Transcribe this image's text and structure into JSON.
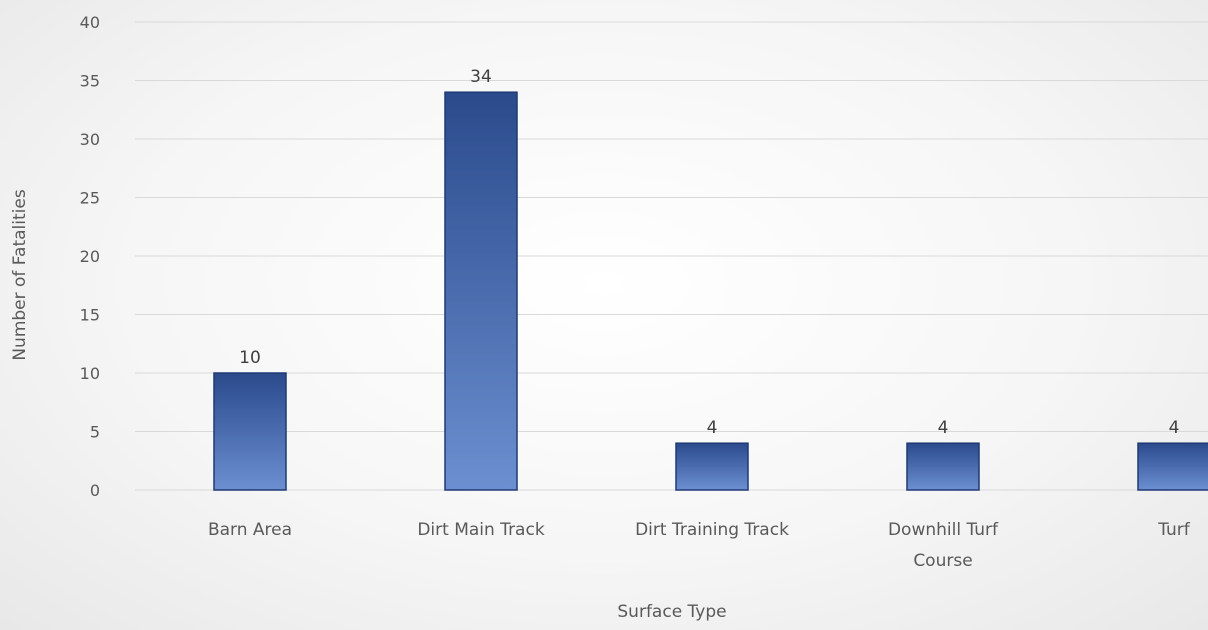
{
  "chart_data": {
    "type": "bar",
    "categories": [
      "Barn Area",
      "Dirt Main Track",
      "Dirt Training Track",
      "Downhill Turf Course",
      "Turf"
    ],
    "category_lines": [
      [
        "Barn Area"
      ],
      [
        "Dirt Main Track"
      ],
      [
        "Dirt Training Track"
      ],
      [
        "Downhill Turf",
        "Course"
      ],
      [
        "Turf"
      ]
    ],
    "values": [
      10,
      34,
      4,
      4,
      4
    ],
    "data_labels": [
      "10",
      "34",
      "4",
      "4",
      "4"
    ],
    "title": "",
    "xlabel": "Surface Type",
    "ylabel": "Number of Fatalities",
    "ylim": [
      0,
      40
    ],
    "yticks": [
      0,
      5,
      10,
      15,
      20,
      25,
      30,
      35,
      40
    ],
    "grid": true,
    "legend": "none",
    "bar_color_top": "#2a4a8c",
    "bar_color_bottom": "#6b8fd0"
  }
}
